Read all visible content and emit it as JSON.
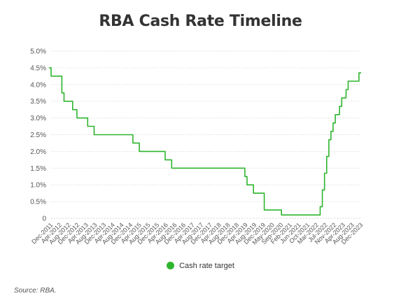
{
  "chart_data": {
    "type": "line",
    "title": "RBA Cash Rate Timeline",
    "xlabel": "",
    "ylabel": "",
    "ylim": [
      0,
      5.0
    ],
    "y_ticks": [
      "0",
      "0.5%",
      "1.0%",
      "1.5%",
      "2.0%",
      "2.5%",
      "3.0%",
      "3.5%",
      "4.0%",
      "4.5%",
      "5.0%"
    ],
    "x_ticks": [
      "Dec-2011",
      "Apr-2012",
      "Aug-2012",
      "Dec-2012",
      "Apr-2013",
      "Aug-2013",
      "Dec-2013",
      "Apr-2014",
      "Aug-2014",
      "Dec-2014",
      "Apr-2015",
      "Aug-2015",
      "Dec-2015",
      "Apr-2016",
      "Aug-2016",
      "Dec-2016",
      "Apr-2017",
      "Aug-2017",
      "Dec-2017",
      "Apr-2018",
      "Aug-2018",
      "Dec-2018",
      "Apr-2019",
      "Aug-2019",
      "Dec-2019",
      "May-2020",
      "Sep-2020",
      "Feb-2021",
      "Jun-2021",
      "Oct-2021",
      "Mar-2022",
      "Jul-2022",
      "Nov-2022",
      "Apr-2023",
      "Aug-2023",
      "Dec-2023"
    ],
    "grid": true,
    "legend_position": "bottom",
    "series": [
      {
        "name": "Cash rate target",
        "color": "#2db52d",
        "points": [
          [
            "2011-11",
            4.5
          ],
          [
            "2011-12",
            4.25
          ],
          [
            "2012-05",
            3.75
          ],
          [
            "2012-06",
            3.5
          ],
          [
            "2012-10",
            3.25
          ],
          [
            "2012-12",
            3.0
          ],
          [
            "2013-05",
            2.75
          ],
          [
            "2013-08",
            2.5
          ],
          [
            "2015-02",
            2.25
          ],
          [
            "2015-05",
            2.0
          ],
          [
            "2016-05",
            1.75
          ],
          [
            "2016-08",
            1.5
          ],
          [
            "2019-06",
            1.25
          ],
          [
            "2019-07",
            1.0
          ],
          [
            "2019-10",
            0.75
          ],
          [
            "2020-03",
            0.25
          ],
          [
            "2020-11",
            0.1
          ],
          [
            "2022-05",
            0.35
          ],
          [
            "2022-06",
            0.85
          ],
          [
            "2022-07",
            1.35
          ],
          [
            "2022-08",
            1.85
          ],
          [
            "2022-09",
            2.35
          ],
          [
            "2022-10",
            2.6
          ],
          [
            "2022-11",
            2.85
          ],
          [
            "2022-12",
            3.1
          ],
          [
            "2023-02",
            3.35
          ],
          [
            "2023-03",
            3.6
          ],
          [
            "2023-05",
            3.85
          ],
          [
            "2023-06",
            4.1
          ],
          [
            "2023-11",
            4.35
          ],
          [
            "2023-12",
            4.35
          ]
        ]
      }
    ]
  },
  "source": "Source: RBA."
}
